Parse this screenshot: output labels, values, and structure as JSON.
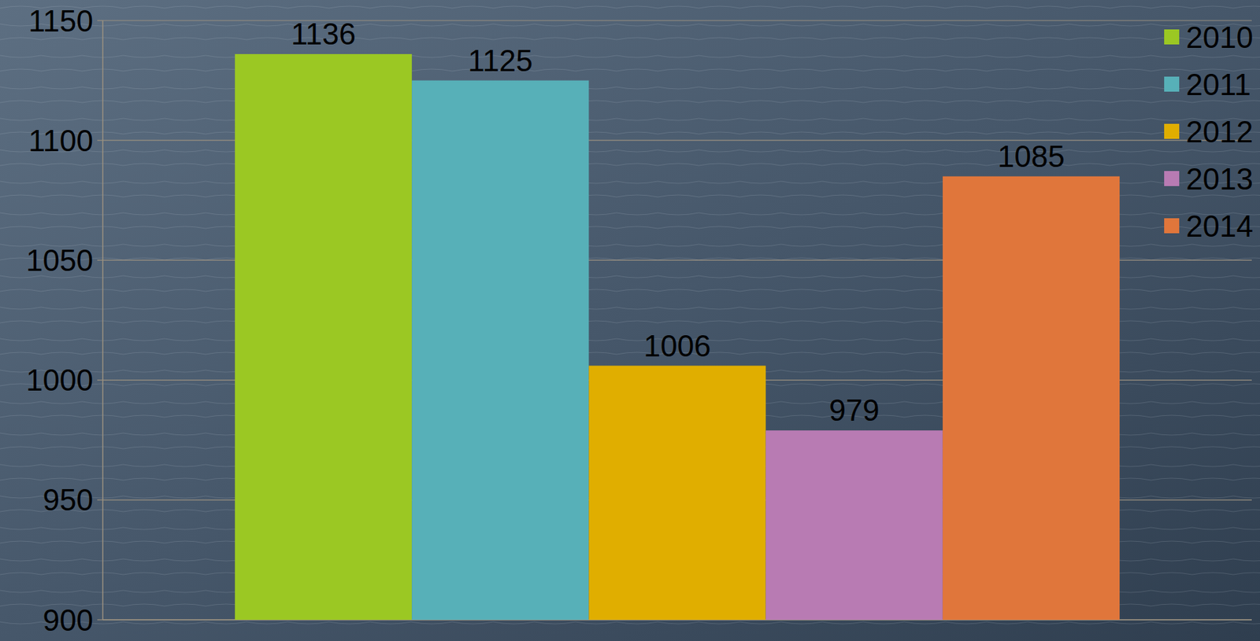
{
  "chart_data": {
    "type": "bar",
    "categories": [
      null
    ],
    "series": [
      {
        "name": "2010",
        "color": "#9bc823",
        "values": [
          1136
        ]
      },
      {
        "name": "2011",
        "color": "#57b0b8",
        "values": [
          1125
        ]
      },
      {
        "name": "2012",
        "color": "#e0ae00",
        "values": [
          1006
        ]
      },
      {
        "name": "2013",
        "color": "#b87bb3",
        "values": [
          979
        ]
      },
      {
        "name": "2014",
        "color": "#e0763b",
        "values": [
          1085
        ]
      }
    ],
    "ylim": [
      900,
      1150
    ],
    "yticks": [
      900,
      950,
      1000,
      1050,
      1100,
      1150
    ],
    "grid": true,
    "legend": "top-right",
    "data_labels": true
  }
}
